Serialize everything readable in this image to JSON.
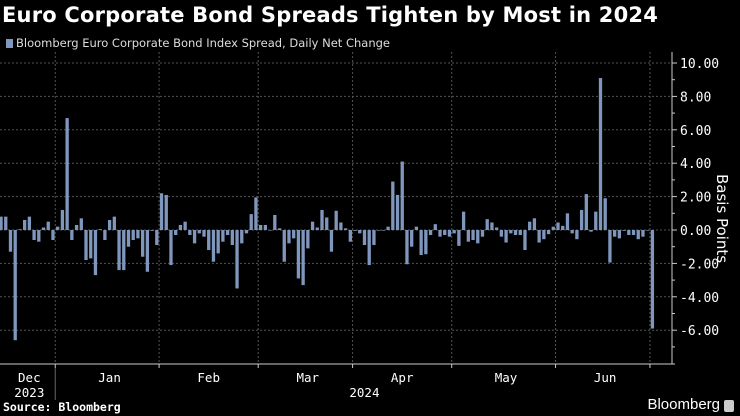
{
  "chart_data": {
    "type": "bar",
    "title": "Euro Corporate Bond Spreads Tighten by Most in 2024",
    "legend": [
      "Bloomberg Euro Corporate Bond Index Spread, Daily Net Change"
    ],
    "ylabel": "Basis Points",
    "xlabel": "",
    "ylim": [
      -8,
      10.5
    ],
    "yticks": [
      "10.00",
      "8.00",
      "6.00",
      "4.00",
      "2.00",
      "0.00",
      "-2.00",
      "-4.00",
      "-6.00"
    ],
    "ytick_values": [
      10,
      8,
      6,
      4,
      2,
      0,
      -2,
      -4,
      -6
    ],
    "months": [
      {
        "label": "Dec",
        "index": 6
      },
      {
        "label": "Jan",
        "index": 23
      },
      {
        "label": "Feb",
        "index": 44
      },
      {
        "label": "Mar",
        "index": 65
      },
      {
        "label": "Apr",
        "index": 85
      },
      {
        "label": "May",
        "index": 107
      },
      {
        "label": "Jun",
        "index": 128
      }
    ],
    "month_boundaries": [
      12,
      34,
      55,
      75,
      96,
      118,
      138
    ],
    "years": [
      {
        "label": "2023",
        "index": 6
      },
      {
        "label": "2024",
        "index": 77
      }
    ],
    "grid": true,
    "legend_position": "top-left",
    "color": "#7f96bd",
    "values": [
      0.8,
      0.8,
      -1.3,
      -6.6,
      0.05,
      0.6,
      0.8,
      -0.6,
      -0.7,
      0.15,
      0.5,
      -0.6,
      0.2,
      1.2,
      6.7,
      -0.6,
      0.3,
      0.7,
      -1.8,
      -1.7,
      -2.7,
      0.05,
      -0.6,
      0.6,
      0.8,
      -2.4,
      -2.4,
      -1.0,
      -0.6,
      -0.5,
      -1.6,
      -2.5,
      -0.05,
      -0.9,
      2.2,
      2.1,
      -2.1,
      -0.3,
      0.3,
      0.5,
      -0.3,
      -0.8,
      -0.2,
      -0.4,
      -1.2,
      -1.9,
      -1.4,
      -0.7,
      -0.3,
      -0.9,
      -3.5,
      -0.8,
      -0.2,
      0.95,
      1.95,
      0.3,
      0.3,
      0,
      0.9,
      0.1,
      -1.9,
      -0.8,
      -0.5,
      -2.9,
      -3.3,
      -1.1,
      0.5,
      0.15,
      1.2,
      0.75,
      -1.3,
      1.15,
      0.45,
      0.1,
      -0.7,
      -0.05,
      -0.2,
      -0.9,
      -2.1,
      -0.9,
      0,
      0,
      0.2,
      2.9,
      2.1,
      4.1,
      -2.05,
      -1.0,
      0.2,
      -1.5,
      -1.45,
      -0.3,
      0.35,
      -0.4,
      -0.3,
      -0.4,
      -0.2,
      -0.95,
      1.1,
      -0.7,
      -0.6,
      -0.8,
      -0.4,
      0.65,
      0.45,
      0.15,
      -0.4,
      -0.75,
      -0.2,
      -0.3,
      -0.3,
      -1.2,
      0.5,
      0.7,
      -0.75,
      -0.55,
      -0.25,
      0.2,
      0.45,
      0.25,
      1.0,
      -0.2,
      -0.55,
      1.2,
      2.15,
      -0.1,
      1.1,
      9.1,
      1.9,
      -1.95,
      -0.4,
      -0.5,
      -0.05,
      -0.3,
      -0.3,
      -0.55,
      -0.4,
      0,
      -5.9
    ]
  },
  "footer": {
    "source": "Source: Bloomberg",
    "logo": "Bloomberg"
  }
}
